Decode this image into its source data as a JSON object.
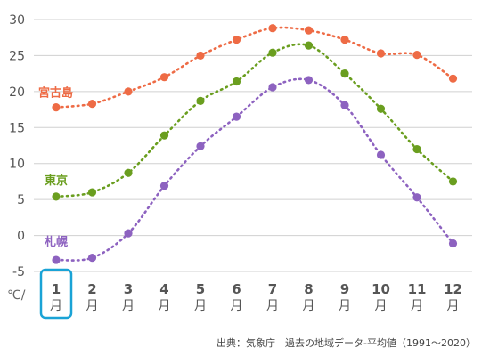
{
  "chart_data": {
    "type": "line",
    "categories": [
      "1",
      "2",
      "3",
      "4",
      "5",
      "6",
      "7",
      "8",
      "9",
      "10",
      "11",
      "12"
    ],
    "month_unit": "月",
    "ylim": [
      -5,
      30
    ],
    "yticks": [
      -5,
      0,
      5,
      10,
      15,
      20,
      25,
      30
    ],
    "unit_label": "℃/",
    "grid": "horizontal",
    "highlighted_category": "1",
    "series": [
      {
        "name": "宮古島",
        "color": "#ee6b45",
        "values": [
          17.8,
          18.3,
          20.0,
          22.0,
          25.0,
          27.2,
          28.8,
          28.5,
          27.2,
          25.3,
          25.1,
          21.8
        ]
      },
      {
        "name": "東京",
        "color": "#6a9e1f",
        "values": [
          5.4,
          6.0,
          8.7,
          13.9,
          18.7,
          21.4,
          25.4,
          26.4,
          22.5,
          17.6,
          12.0,
          7.5
        ]
      },
      {
        "name": "札幌",
        "color": "#8d62c0",
        "values": [
          -3.4,
          -3.1,
          0.3,
          6.9,
          12.4,
          16.5,
          20.6,
          21.6,
          18.1,
          11.2,
          5.3,
          -1.1
        ]
      }
    ]
  },
  "source_note": "出典：気象庁　過去の地域データ-平均値（1991〜2020）",
  "highlight_color": "#1aa3d6"
}
